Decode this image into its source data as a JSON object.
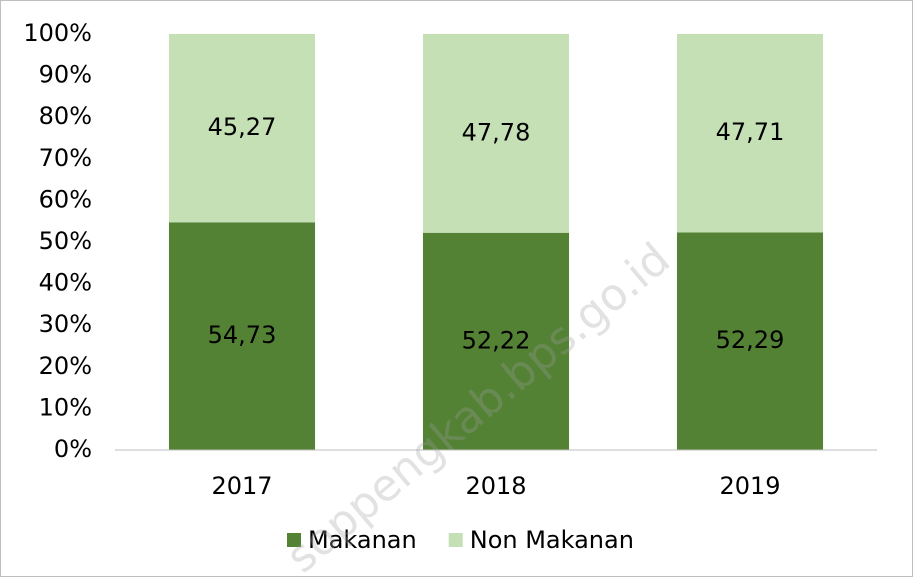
{
  "chart_data": {
    "type": "bar",
    "stacked": true,
    "categories": [
      "2017",
      "2018",
      "2019"
    ],
    "series": [
      {
        "name": "Makanan",
        "color": "#548235",
        "values": [
          54.73,
          52.22,
          52.29
        ],
        "value_labels": [
          "54,73",
          "52,22",
          "52,29"
        ]
      },
      {
        "name": "Non Makanan",
        "color": "#c5e0b4",
        "values": [
          45.27,
          47.78,
          47.71
        ],
        "value_labels": [
          "45,27",
          "47,78",
          "47,71"
        ]
      }
    ],
    "ylim": [
      0,
      100
    ],
    "yticks": [
      {
        "value": 0,
        "label": "0%"
      },
      {
        "value": 10,
        "label": "10%"
      },
      {
        "value": 20,
        "label": "20%"
      },
      {
        "value": 30,
        "label": "30%"
      },
      {
        "value": 40,
        "label": "40%"
      },
      {
        "value": 50,
        "label": "50%"
      },
      {
        "value": 60,
        "label": "60%"
      },
      {
        "value": 70,
        "label": "70%"
      },
      {
        "value": 80,
        "label": "80%"
      },
      {
        "value": 90,
        "label": "90%"
      },
      {
        "value": 100,
        "label": "100%"
      }
    ],
    "grid": false,
    "legend": "bottom",
    "watermark": "soppengkab.bps.go.id"
  }
}
